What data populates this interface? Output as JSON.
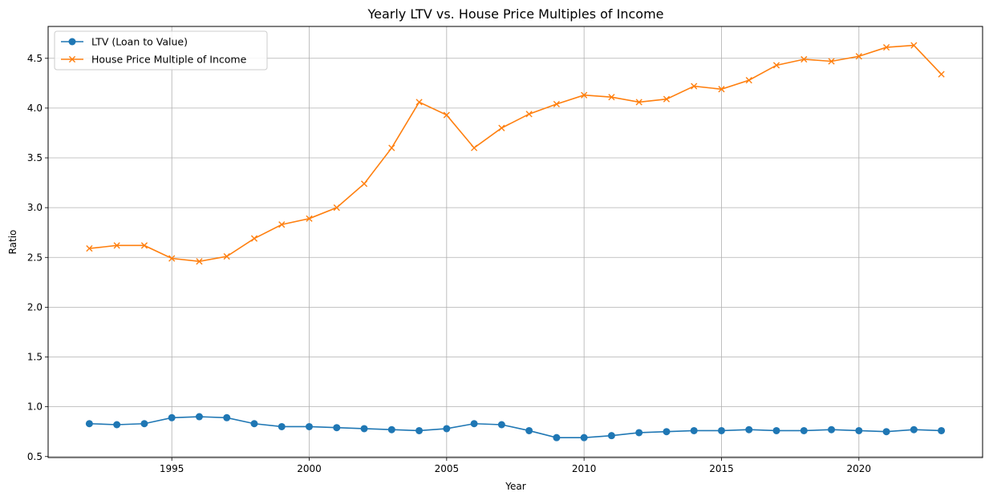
{
  "chart_data": {
    "type": "line",
    "title": "Yearly LTV vs. House Price Multiples of Income",
    "xlabel": "Year",
    "ylabel": "Ratio",
    "xlim": [
      1990.5,
      2024.5
    ],
    "ylim": [
      0.49,
      4.82
    ],
    "xticks": [
      1995,
      2000,
      2005,
      2010,
      2015,
      2020
    ],
    "yticks": [
      0.5,
      1.0,
      1.5,
      2.0,
      2.5,
      3.0,
      3.5,
      4.0,
      4.5
    ],
    "ytick_labels": [
      "0.5",
      "1.0",
      "1.5",
      "2.0",
      "2.5",
      "3.0",
      "3.5",
      "4.0",
      "4.5"
    ],
    "grid": true,
    "legend_position": "top-left",
    "x": [
      1992,
      1993,
      1994,
      1995,
      1996,
      1997,
      1998,
      1999,
      2000,
      2001,
      2002,
      2003,
      2004,
      2005,
      2006,
      2007,
      2008,
      2009,
      2010,
      2011,
      2012,
      2013,
      2014,
      2015,
      2016,
      2017,
      2018,
      2019,
      2020,
      2021,
      2022,
      2023
    ],
    "series": [
      {
        "name": "LTV (Loan to Value)",
        "marker": "circle",
        "color": "#1f77b4",
        "values": [
          0.83,
          0.82,
          0.83,
          0.89,
          0.9,
          0.89,
          0.83,
          0.8,
          0.8,
          0.79,
          0.78,
          0.77,
          0.76,
          0.78,
          0.83,
          0.82,
          0.76,
          0.69,
          0.69,
          0.71,
          0.74,
          0.75,
          0.76,
          0.76,
          0.77,
          0.76,
          0.76,
          0.77,
          0.76,
          0.75,
          0.77,
          0.76
        ]
      },
      {
        "name": "House Price Multiple of Income",
        "marker": "x",
        "color": "#ff7f0e",
        "values": [
          2.59,
          2.62,
          2.62,
          2.49,
          2.46,
          2.51,
          2.69,
          2.83,
          2.89,
          3.0,
          3.24,
          3.6,
          4.06,
          3.93,
          3.6,
          3.8,
          3.94,
          4.04,
          4.13,
          4.11,
          4.06,
          4.09,
          4.22,
          4.19,
          4.28,
          4.43,
          4.49,
          4.47,
          4.52,
          4.61,
          4.63,
          4.34
        ]
      }
    ]
  }
}
